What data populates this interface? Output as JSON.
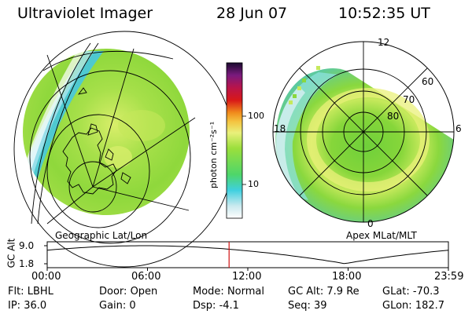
{
  "header": {
    "instrument": "Ultraviolet Imager",
    "date": "28 Jun 07",
    "time": "10:52:35 UT"
  },
  "left_panel": {
    "label": "Geographic Lat/Lon"
  },
  "right_panel": {
    "label": "Apex MLat/MLT",
    "mlt_labels": {
      "top": "12",
      "left": "18",
      "right": "6",
      "bottom": "0"
    },
    "lat_labels": [
      "60",
      "70",
      "80"
    ]
  },
  "colorbar": {
    "ticks": [
      "100",
      "10"
    ],
    "unit": "photon cm⁻²s⁻¹"
  },
  "timeline": {
    "y_axis_label": "GC Alt",
    "y_ticks": [
      "9.0",
      "1.8"
    ],
    "x_ticks": [
      "00:00",
      "06:00",
      "12:00",
      "18:00",
      "23:59"
    ],
    "current_hour": 10.88
  },
  "status": {
    "row1": [
      {
        "key": "Flt:",
        "value": "LBHL"
      },
      {
        "key": "Door:",
        "value": "Open"
      },
      {
        "key": "Mode:",
        "value": "Normal"
      },
      {
        "key": "GC Alt:",
        "value": "7.9 Re"
      },
      {
        "key": "GLat:",
        "value": "-70.3"
      }
    ],
    "row2": [
      {
        "key": "IP:",
        "value": "36.0"
      },
      {
        "key": "Gain:",
        "value": "0"
      },
      {
        "key": "Dsp:",
        "value": "-4.1"
      },
      {
        "key": "Seq:",
        "value": "39"
      },
      {
        "key": "GLon:",
        "value": "182.7"
      }
    ]
  },
  "colors": {
    "aurora_green": "#7ccf2a",
    "aurora_yellow": "#e9f07a",
    "cyan_edge": "#49d3e0",
    "time_marker": "#d01010"
  }
}
